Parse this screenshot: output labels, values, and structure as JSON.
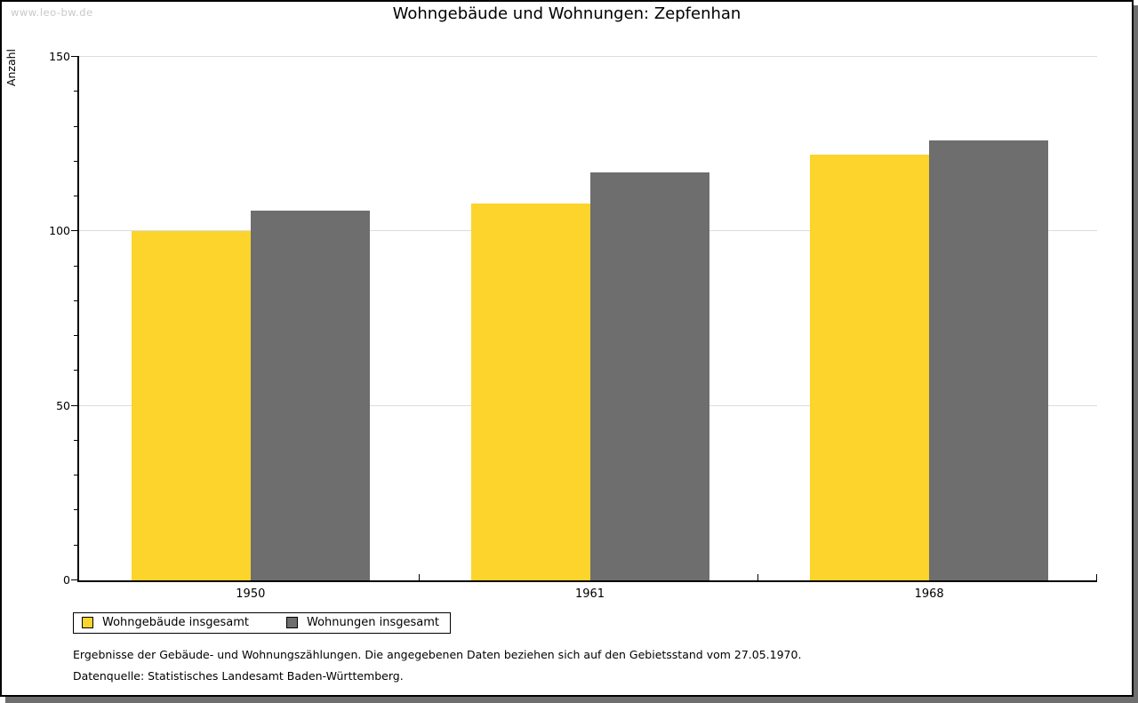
{
  "watermark": "www.leo-bw.de",
  "y_axis_label": "Anzahl",
  "chart_data": {
    "type": "bar",
    "title": "Wohngebäude und Wohnungen: Zepfenhan",
    "xlabel": "",
    "ylabel": "Anzahl",
    "ylim": [
      0,
      150
    ],
    "y_major_step": 50,
    "y_minor_step": 10,
    "grid": "horizontal-major",
    "legend_position": "bottom-left",
    "categories": [
      "1950",
      "1961",
      "1968"
    ],
    "series": [
      {
        "name": "Wohngebäude insgesamt",
        "color": "#fcd42b",
        "values": [
          100,
          108,
          122
        ]
      },
      {
        "name": "Wohnungen insgesamt",
        "color": "#6e6e6e",
        "values": [
          106,
          117,
          126
        ]
      }
    ]
  },
  "footnotes": [
    "Ergebnisse der Gebäude- und Wohnungszählungen. Die angegebenen Daten beziehen sich auf den Gebietsstand vom 27.05.1970.",
    "Datenquelle: Statistisches Landesamt Baden-Württemberg."
  ],
  "colors": {
    "bar_yellow": "#fcd42b",
    "bar_gray": "#6e6e6e",
    "gridline": "#dcdcdc",
    "watermark_text": "#c9c9c9",
    "window_shadow": "#6e6e6e",
    "axis": "#000000"
  }
}
